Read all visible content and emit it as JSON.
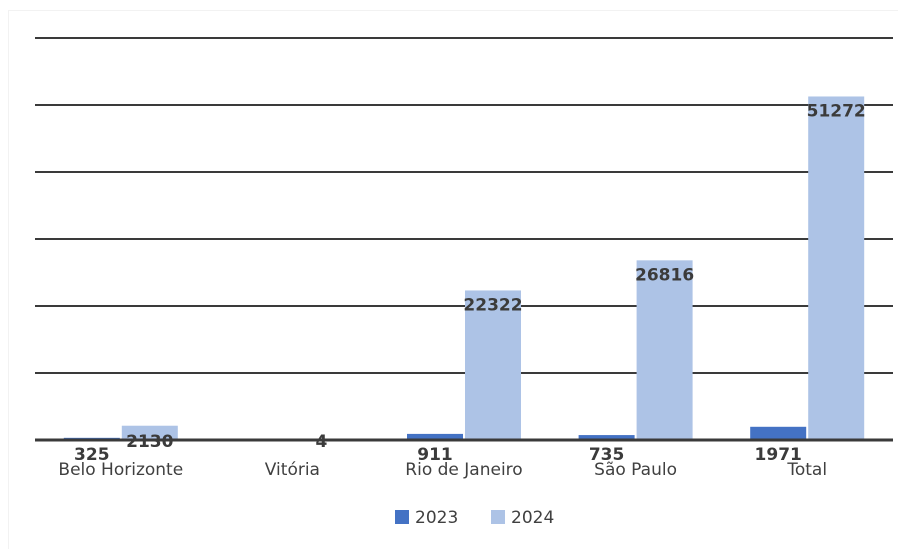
{
  "chart_data": {
    "type": "bar",
    "categories": [
      "Belo Horizonte",
      "Vitória",
      "Rio de Janeiro",
      "São Paulo",
      "Total"
    ],
    "series": [
      {
        "name": "2023",
        "values": [
          325,
          null,
          911,
          735,
          1971
        ],
        "labels": [
          "325",
          "",
          "911",
          "735",
          "1971"
        ],
        "color": "#4472c4"
      },
      {
        "name": "2024",
        "values": [
          2130,
          4,
          22322,
          26816,
          51272
        ],
        "labels": [
          "2130",
          "4",
          "22322",
          "26816",
          "51272"
        ],
        "color": "#adc3e6"
      }
    ],
    "title": "",
    "xlabel": "",
    "ylabel": "",
    "ylim": [
      0,
      60000
    ],
    "grid": true,
    "legend": "bottom"
  }
}
